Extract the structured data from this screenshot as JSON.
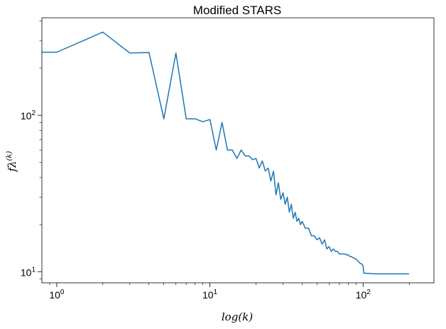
{
  "chart_data": {
    "type": "line",
    "title": "Modified STARS",
    "xlabel": "log(k)",
    "ylabel": "fλ^(k)",
    "ylabel_parts": {
      "base": "fλ",
      "sup": "(k)"
    },
    "x_scale": "log",
    "y_scale": "log",
    "xlim": [
      0.8,
      290
    ],
    "ylim": [
      8.5,
      420
    ],
    "x_ticks": [
      {
        "value": 1,
        "label": "10",
        "exp": "0"
      },
      {
        "value": 10,
        "label": "10",
        "exp": "1"
      },
      {
        "value": 100,
        "label": "10",
        "exp": "2"
      }
    ],
    "y_ticks": [
      {
        "value": 10,
        "label": "10",
        "exp": "1"
      },
      {
        "value": 100,
        "label": "10",
        "exp": "2"
      }
    ],
    "grid": false,
    "series": [
      {
        "color": "#1f77b4",
        "x": [
          0.8,
          1,
          2,
          3,
          4,
          5,
          6,
          7,
          8,
          9,
          10,
          11,
          12,
          13,
          14,
          15,
          16,
          17,
          18,
          19,
          20,
          21,
          22,
          23,
          24,
          25,
          26,
          27,
          28,
          29,
          30,
          31,
          32,
          33,
          34,
          35,
          36,
          37,
          38,
          39,
          40,
          42,
          44,
          46,
          48,
          50,
          52,
          54,
          56,
          58,
          60,
          62,
          64,
          66,
          68,
          70,
          72,
          74,
          76,
          78,
          80,
          82,
          84,
          86,
          88,
          90,
          92,
          94,
          96,
          98,
          100,
          101,
          120,
          140,
          160,
          200
        ],
        "y": [
          253,
          253,
          340,
          250,
          252,
          95,
          250,
          95,
          95,
          91,
          94,
          60,
          90,
          60,
          60,
          53,
          60,
          55,
          55,
          52,
          53,
          46,
          51,
          44,
          46,
          38,
          44,
          31,
          37,
          29,
          32,
          27,
          30,
          24,
          27,
          22,
          24,
          21,
          22,
          20,
          21,
          19,
          19,
          17,
          17,
          16,
          16.5,
          15,
          16,
          14,
          14.5,
          13.5,
          14,
          13.5,
          13.5,
          13,
          13,
          13,
          13,
          12.8,
          12.8,
          12.5,
          12.5,
          12.3,
          12.2,
          12,
          11.8,
          11.5,
          11.3,
          11.2,
          10.9,
          9.8,
          9.7,
          9.7,
          9.7,
          9.7
        ]
      }
    ]
  }
}
